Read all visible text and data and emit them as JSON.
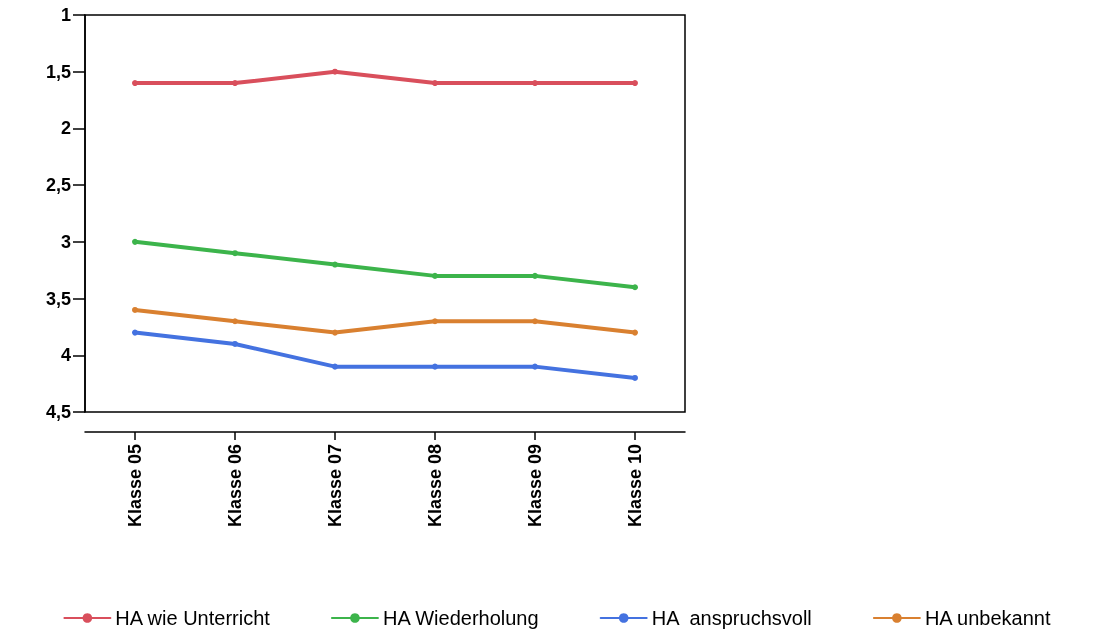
{
  "chart_data": {
    "type": "line",
    "categories": [
      "Klasse 05",
      "Klasse 06",
      "Klasse 07",
      "Klasse 08",
      "Klasse 09",
      "Klasse 10"
    ],
    "series": [
      {
        "name": "HA wie Unterricht",
        "color": "#d94f5c",
        "values": [
          1.6,
          1.6,
          1.5,
          1.6,
          1.6,
          1.6
        ]
      },
      {
        "name": "HA Wiederholung",
        "color": "#3cb44b",
        "values": [
          3.0,
          3.1,
          3.2,
          3.3,
          3.3,
          3.4
        ]
      },
      {
        "name": "HA  anspruchsvoll",
        "color": "#4472e0",
        "values": [
          3.8,
          3.9,
          4.1,
          4.1,
          4.1,
          4.2
        ]
      },
      {
        "name": "HA unbekannt",
        "color": "#d98030",
        "values": [
          3.6,
          3.7,
          3.8,
          3.7,
          3.7,
          3.8
        ]
      }
    ],
    "ylim": [
      4.5,
      1
    ],
    "yticks": [
      1,
      {
        "value": 1.5,
        "label": "1,5"
      },
      2,
      {
        "value": 2.5,
        "label": "2,5"
      },
      3,
      {
        "value": 3.5,
        "label": "3,5"
      },
      4,
      {
        "value": 4.5,
        "label": "4,5"
      }
    ],
    "grid": false,
    "legend": "bottom",
    "marker": "circle",
    "line_style": "solid"
  }
}
